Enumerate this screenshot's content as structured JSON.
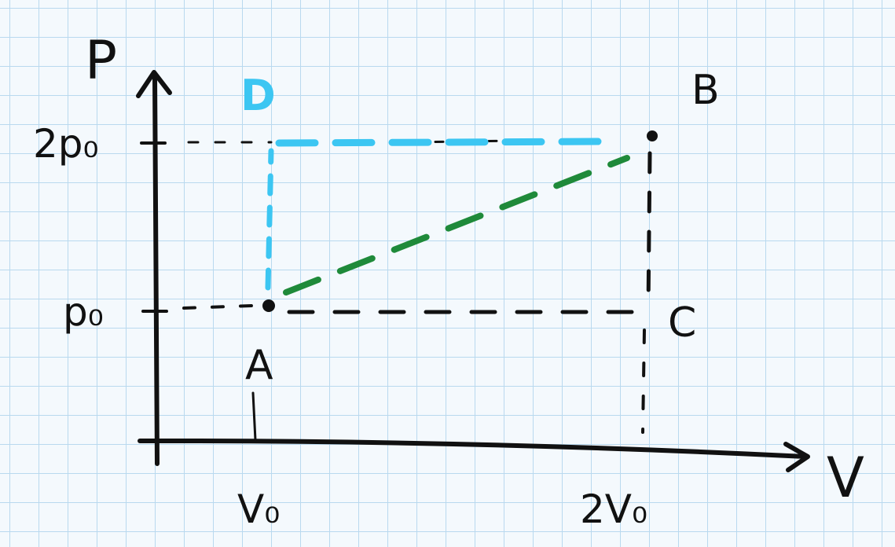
{
  "diagram": {
    "axes": {
      "y_label": "P",
      "x_label": "V"
    },
    "ticks": {
      "pressure": [
        "2p₀",
        "p₀"
      ],
      "volume": [
        "V₀",
        "2V₀"
      ]
    },
    "points": {
      "A": "A",
      "B": "B",
      "C": "C",
      "D": "D"
    },
    "colors": {
      "ink": "#111111",
      "path_via_D": "#3cc6f2",
      "direct_path": "#1f8a3a",
      "grid": "#b9d9ef",
      "paper": "#f4f9fd"
    }
  }
}
